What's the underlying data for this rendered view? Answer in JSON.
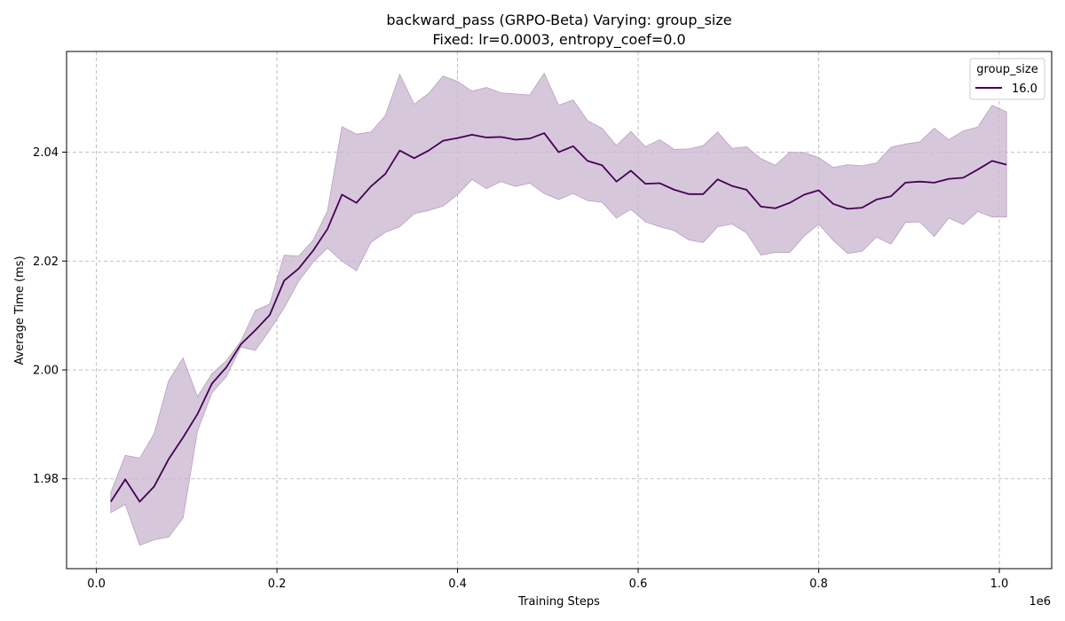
{
  "chart_data": {
    "type": "line",
    "title_line1": "backward_pass (GRPO-Beta) Varying: group_size",
    "title_line2": "Fixed: lr=0.0003, entropy_coef=0.0",
    "xlabel": "Training Steps",
    "ylabel": "Average Time (ms)",
    "x_multiplier_label": "1e6",
    "xlim": [
      -0.033,
      1.058
    ],
    "ylim": [
      1.9635,
      2.0585
    ],
    "x_ticks": [
      0.0,
      0.2,
      0.4,
      0.6,
      0.8,
      1.0
    ],
    "x_tick_labels": [
      "0.0",
      "0.2",
      "0.4",
      "0.6",
      "0.8",
      "1.0"
    ],
    "y_ticks": [
      1.98,
      2.0,
      2.02,
      2.04
    ],
    "y_tick_labels": [
      "1.98",
      "2.00",
      "2.02",
      "2.04"
    ],
    "grid": true,
    "legend": {
      "title": "group_size",
      "placement": "top-right"
    },
    "colors": {
      "line": "#440154",
      "band": "#ccb7d1"
    },
    "series": [
      {
        "name": "16.0",
        "x": [
          0.016,
          0.032,
          0.048,
          0.064,
          0.08,
          0.096,
          0.112,
          0.128,
          0.144,
          0.16,
          0.176,
          0.192,
          0.208,
          0.224,
          0.24,
          0.256,
          0.272,
          0.288,
          0.304,
          0.32,
          0.336,
          0.352,
          0.368,
          0.384,
          0.4,
          0.416,
          0.432,
          0.448,
          0.464,
          0.48,
          0.496,
          0.512,
          0.528,
          0.544,
          0.56,
          0.576,
          0.592,
          0.608,
          0.624,
          0.64,
          0.656,
          0.672,
          0.688,
          0.704,
          0.72,
          0.736,
          0.752,
          0.768,
          0.784,
          0.8,
          0.816,
          0.832,
          0.848,
          0.864,
          0.88,
          0.896,
          0.912,
          0.928,
          0.944,
          0.96,
          0.976,
          0.992,
          1.008
        ],
        "y": [
          1.9758,
          1.9799,
          1.9758,
          1.9786,
          1.9836,
          1.9876,
          1.9919,
          1.9975,
          2.0005,
          2.0047,
          2.0073,
          2.0101,
          2.0164,
          2.0186,
          2.0219,
          2.0259,
          2.0322,
          2.0307,
          2.0337,
          2.036,
          2.0403,
          2.0389,
          2.0403,
          2.0421,
          2.0426,
          2.0432,
          2.0427,
          2.0428,
          2.0423,
          2.0425,
          2.0435,
          2.04,
          2.0411,
          2.0384,
          2.0376,
          2.0346,
          2.0366,
          2.0342,
          2.0343,
          2.0331,
          2.0323,
          2.0323,
          2.035,
          2.0338,
          2.0331,
          2.03,
          2.0297,
          2.0307,
          2.0322,
          2.033,
          2.0305,
          2.0296,
          2.0298,
          2.0313,
          2.0319,
          2.0344,
          2.0346,
          2.0344,
          2.0351,
          2.0353,
          2.0368,
          2.0384,
          2.0377
        ],
        "lower": [
          1.9738,
          1.9753,
          1.9678,
          1.9688,
          1.9693,
          1.9728,
          1.9888,
          1.9958,
          1.9988,
          2.0042,
          2.0036,
          2.0073,
          2.0114,
          2.0163,
          2.0198,
          2.0224,
          2.02,
          2.0182,
          2.0234,
          2.0253,
          2.0263,
          2.0287,
          2.0293,
          2.0301,
          2.0322,
          2.035,
          2.0333,
          2.0346,
          2.0337,
          2.0343,
          2.0324,
          2.0313,
          2.0324,
          2.0311,
          2.0308,
          2.0279,
          2.0295,
          2.0272,
          2.0263,
          2.0256,
          2.0239,
          2.0234,
          2.0263,
          2.0268,
          2.0252,
          2.0211,
          2.0216,
          2.0216,
          2.0246,
          2.0268,
          2.0238,
          2.0214,
          2.0218,
          2.0244,
          2.0231,
          2.0271,
          2.0272,
          2.0245,
          2.0279,
          2.0267,
          2.0291,
          2.0281,
          2.0281
        ],
        "upper": [
          1.9775,
          1.9843,
          1.9838,
          1.9883,
          1.998,
          2.0022,
          1.9951,
          1.9993,
          2.0017,
          2.0053,
          2.0109,
          2.0121,
          2.0211,
          2.0209,
          2.0238,
          2.0292,
          2.0447,
          2.0433,
          2.0437,
          2.0467,
          2.0543,
          2.0488,
          2.0508,
          2.054,
          2.053,
          2.0512,
          2.0519,
          2.0509,
          2.0507,
          2.0505,
          2.0545,
          2.0486,
          2.0496,
          2.0458,
          2.0444,
          2.0412,
          2.0438,
          2.041,
          2.0423,
          2.0405,
          2.0406,
          2.0412,
          2.0437,
          2.0407,
          2.041,
          2.0388,
          2.0376,
          2.04,
          2.0399,
          2.039,
          2.0372,
          2.0377,
          2.0375,
          2.038,
          2.0409,
          2.0415,
          2.0419,
          2.0444,
          2.0423,
          2.0439,
          2.0446,
          2.0486,
          2.0474
        ]
      }
    ]
  }
}
